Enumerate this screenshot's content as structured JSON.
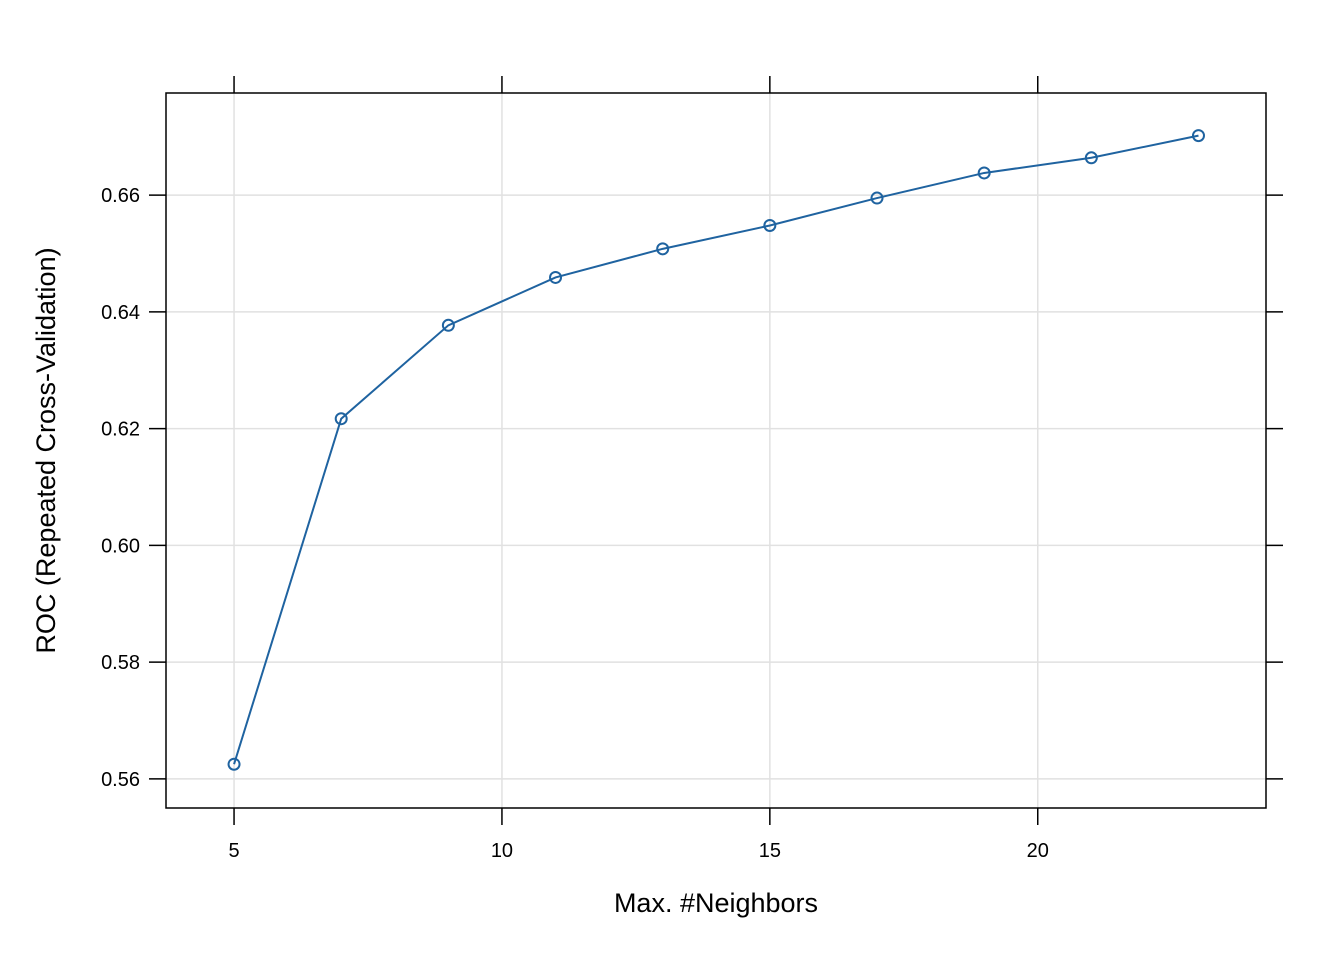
{
  "chart_data": {
    "type": "line",
    "title": "",
    "xlabel": "Max. #Neighbors",
    "ylabel": "ROC (Repeated Cross-Validation)",
    "x": [
      5,
      7,
      9,
      11,
      13,
      15,
      17,
      19,
      21,
      23
    ],
    "series": [
      {
        "name": "ROC",
        "values": [
          0.5625,
          0.6217,
          0.6377,
          0.6459,
          0.6508,
          0.6548,
          0.6595,
          0.6638,
          0.6664,
          0.6702
        ],
        "color": "#1f63a0",
        "marker": "open-circle"
      }
    ],
    "xlim": [
      3.73,
      24.26
    ],
    "ylim": [
      0.555,
      0.6775
    ],
    "xticks": [
      5,
      10,
      15,
      20
    ],
    "xtick_labels": [
      "5",
      "10",
      "15",
      "20"
    ],
    "yticks": [
      0.56,
      0.58,
      0.6,
      0.62,
      0.64,
      0.66
    ],
    "ytick_labels": [
      "0.56",
      "0.58",
      "0.60",
      "0.62",
      "0.64",
      "0.66"
    ],
    "grid": true,
    "grid_color": "#e1e1e1",
    "frame_color": "#000000"
  }
}
